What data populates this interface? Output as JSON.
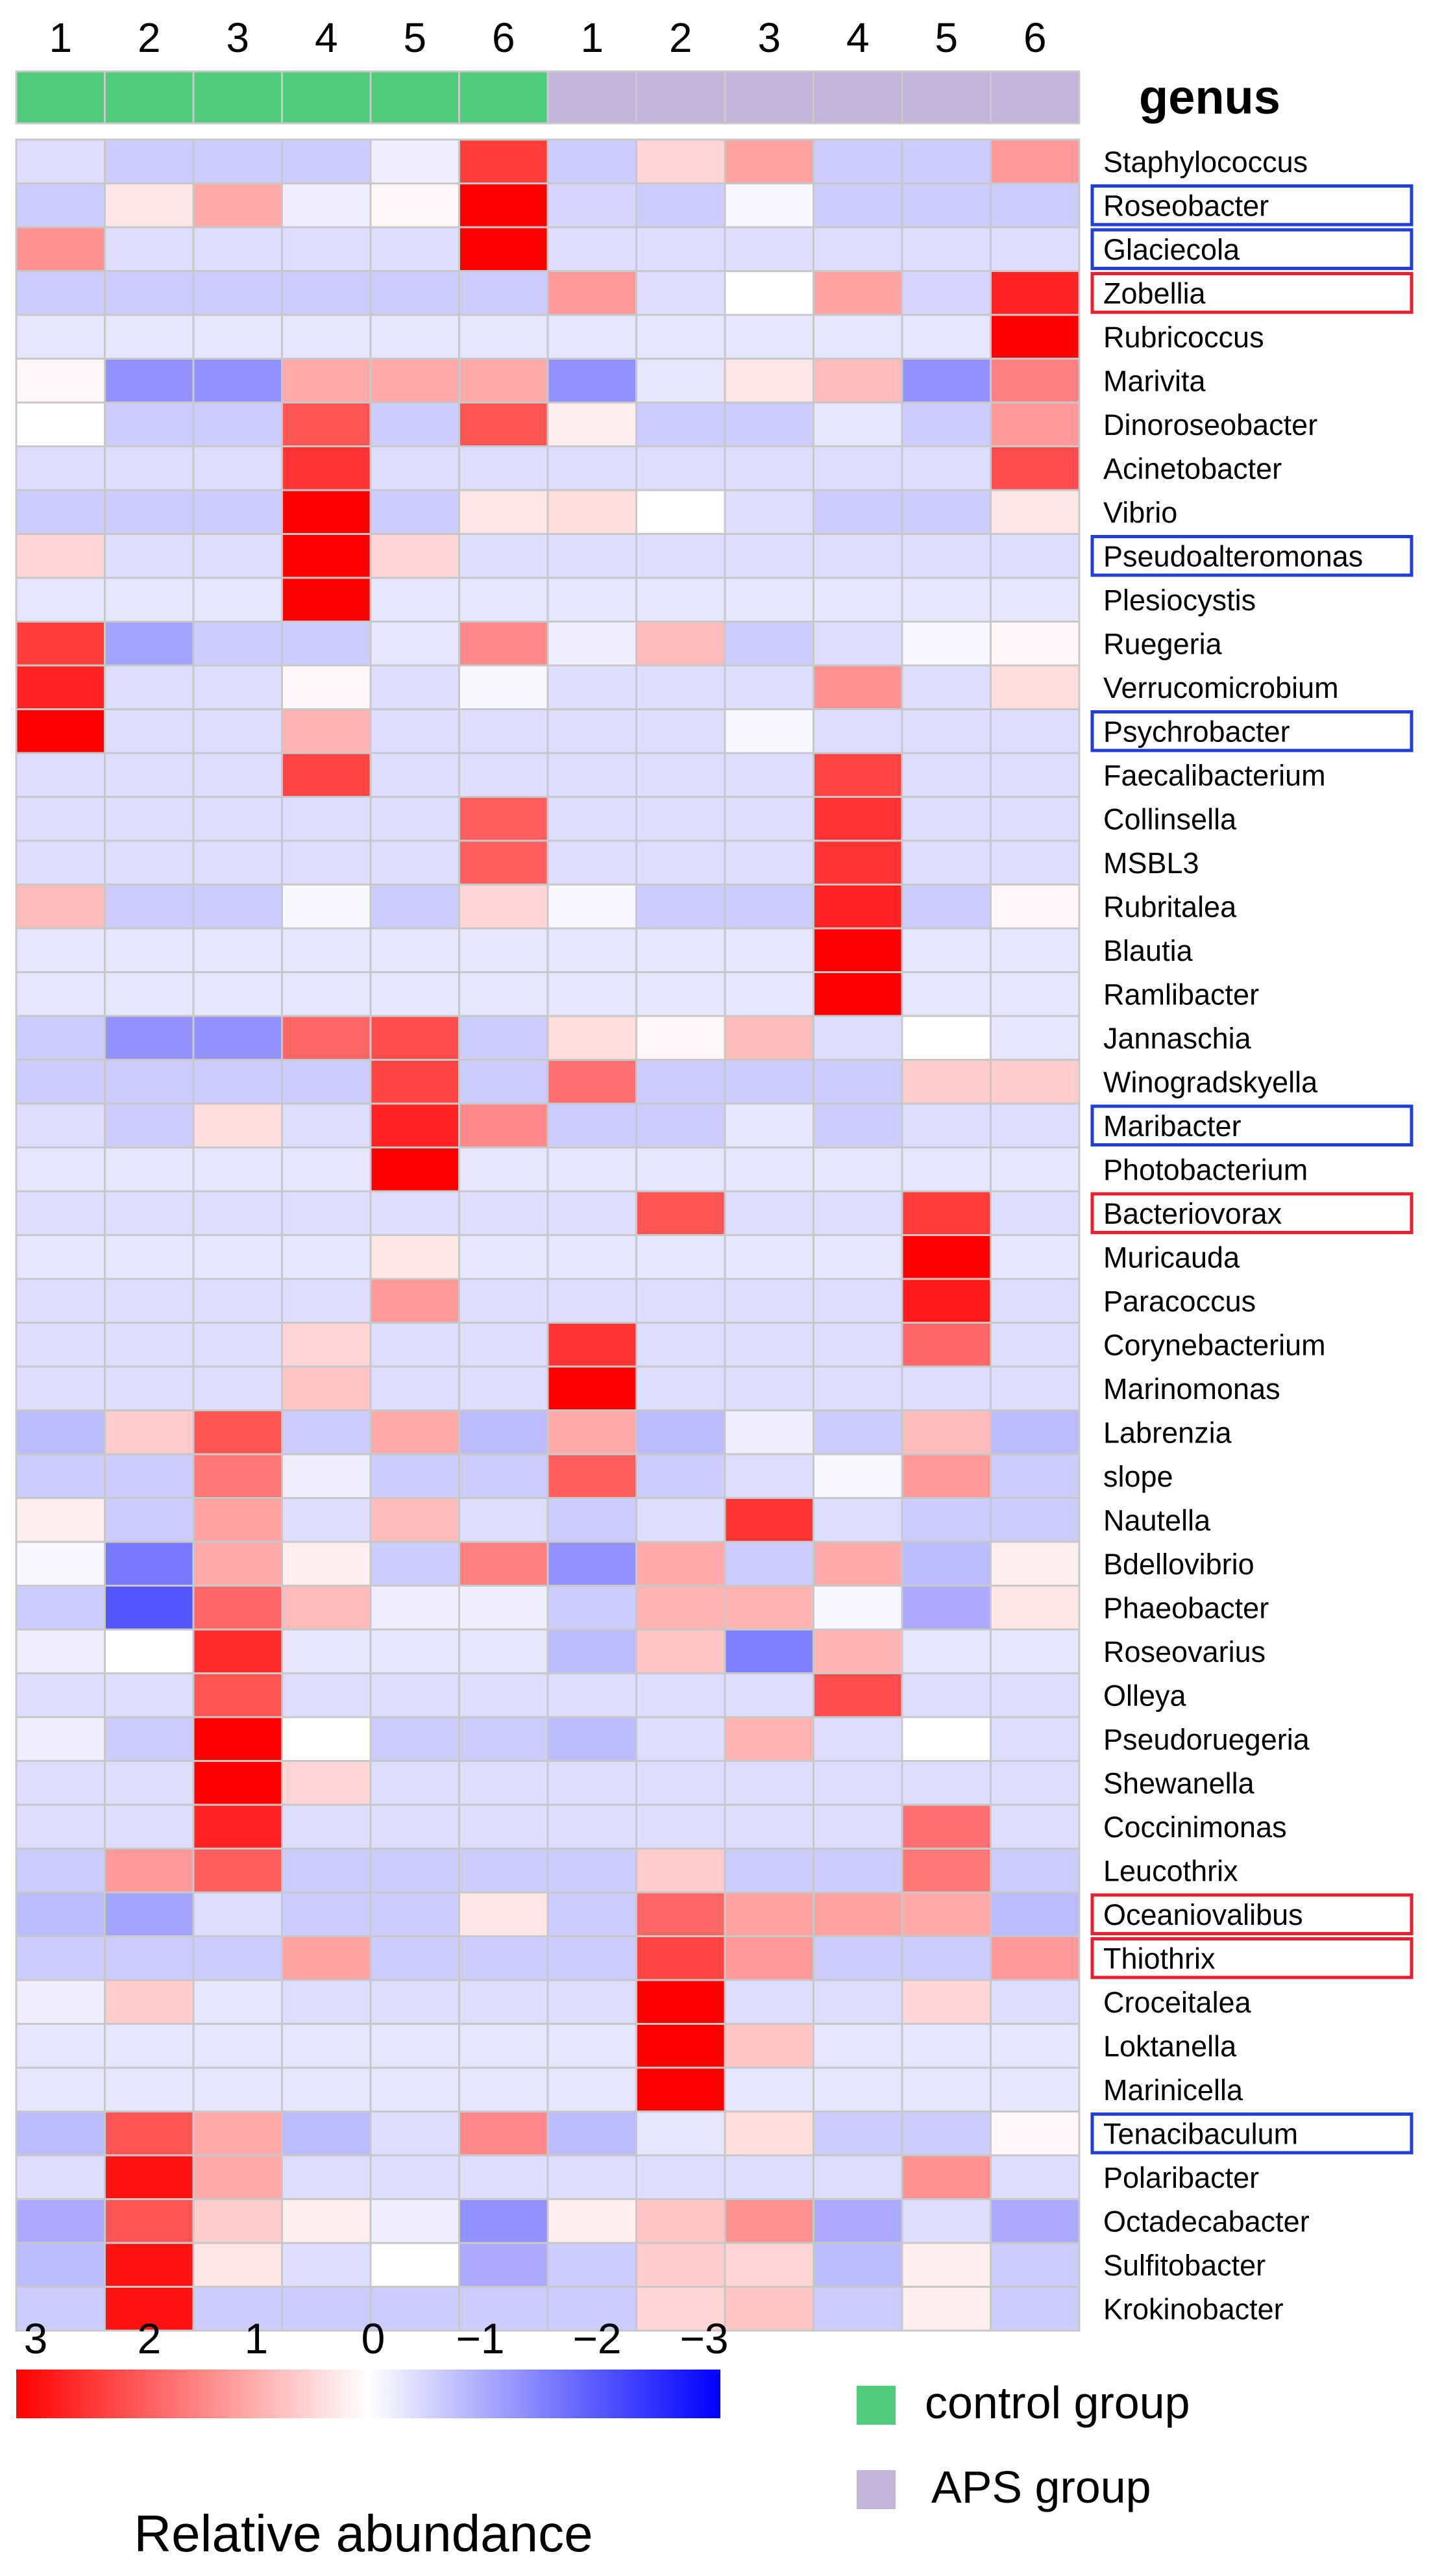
{
  "chart_data": {
    "type": "heatmap",
    "column_labels": [
      "1",
      "2",
      "3",
      "4",
      "5",
      "6",
      "1",
      "2",
      "3",
      "4",
      "5",
      "6"
    ],
    "column_groups": [
      "control",
      "control",
      "control",
      "control",
      "control",
      "control",
      "APS",
      "APS",
      "APS",
      "APS",
      "APS",
      "APS"
    ],
    "annotation_title": "genus",
    "rows": [
      {
        "name": "Staphylococcus",
        "values": [
          -0.4,
          -0.6,
          -0.6,
          -0.6,
          -0.2,
          2.3,
          -0.6,
          0.5,
          1.1,
          -0.6,
          -0.6,
          1.2
        ],
        "box": ""
      },
      {
        "name": "Roseobacter",
        "values": [
          -0.6,
          0.3,
          1.0,
          -0.2,
          0.1,
          3.0,
          -0.5,
          -0.6,
          -0.1,
          -0.6,
          -0.6,
          -0.6
        ],
        "box": "blue"
      },
      {
        "name": "Glaciecola",
        "values": [
          1.3,
          -0.4,
          -0.4,
          -0.4,
          -0.4,
          3.0,
          -0.4,
          -0.4,
          -0.4,
          -0.4,
          -0.4,
          -0.4
        ],
        "box": "blue"
      },
      {
        "name": "Zobellia",
        "values": [
          -0.6,
          -0.6,
          -0.6,
          -0.6,
          -0.6,
          -0.6,
          1.2,
          -0.4,
          0.0,
          1.1,
          -0.5,
          2.6
        ],
        "box": "red"
      },
      {
        "name": "Rubricoccus",
        "values": [
          -0.3,
          -0.3,
          -0.3,
          -0.3,
          -0.3,
          -0.3,
          -0.3,
          -0.3,
          -0.3,
          -0.3,
          -0.3,
          3.0
        ],
        "box": ""
      },
      {
        "name": "Marivita",
        "values": [
          0.1,
          -1.3,
          -1.3,
          1.0,
          1.0,
          1.0,
          -1.3,
          -0.3,
          0.3,
          0.8,
          -1.3,
          1.5
        ],
        "box": ""
      },
      {
        "name": "Dinoroseobacter",
        "values": [
          0.0,
          -0.6,
          -0.6,
          2.0,
          -0.6,
          2.0,
          0.2,
          -0.6,
          -0.6,
          -0.3,
          -0.6,
          1.2
        ],
        "box": ""
      },
      {
        "name": "Acinetobacter",
        "values": [
          -0.4,
          -0.4,
          -0.4,
          2.4,
          -0.4,
          -0.4,
          -0.4,
          -0.4,
          -0.4,
          -0.4,
          -0.4,
          2.1
        ],
        "box": ""
      },
      {
        "name": "Vibrio",
        "values": [
          -0.6,
          -0.6,
          -0.6,
          3.0,
          -0.6,
          0.3,
          0.4,
          0.0,
          -0.4,
          -0.6,
          -0.6,
          0.3
        ],
        "box": ""
      },
      {
        "name": "Pseudoalteromonas",
        "values": [
          0.5,
          -0.4,
          -0.4,
          3.0,
          0.5,
          -0.4,
          -0.4,
          -0.4,
          -0.4,
          -0.4,
          -0.4,
          -0.4
        ],
        "box": "blue"
      },
      {
        "name": "Plesiocystis",
        "values": [
          -0.3,
          -0.3,
          -0.3,
          3.0,
          -0.3,
          -0.3,
          -0.3,
          -0.3,
          -0.3,
          -0.3,
          -0.3,
          -0.3
        ],
        "box": ""
      },
      {
        "name": "Ruegeria",
        "values": [
          2.3,
          -1.1,
          -0.6,
          -0.6,
          -0.3,
          1.4,
          -0.2,
          0.8,
          -0.6,
          -0.4,
          -0.1,
          0.1
        ],
        "box": ""
      },
      {
        "name": "Verrucomicrobium",
        "values": [
          2.6,
          -0.4,
          -0.4,
          0.1,
          -0.4,
          -0.1,
          -0.4,
          -0.4,
          -0.4,
          1.3,
          -0.4,
          0.4
        ],
        "box": ""
      },
      {
        "name": "Psychrobacter",
        "values": [
          3.0,
          -0.4,
          -0.4,
          0.9,
          -0.4,
          -0.4,
          -0.4,
          -0.4,
          -0.1,
          -0.4,
          -0.4,
          -0.4
        ],
        "box": "blue"
      },
      {
        "name": "Faecalibacterium",
        "values": [
          -0.4,
          -0.4,
          -0.4,
          2.2,
          -0.4,
          -0.4,
          -0.4,
          -0.4,
          -0.4,
          2.2,
          -0.4,
          -0.4
        ],
        "box": ""
      },
      {
        "name": "Collinsella",
        "values": [
          -0.4,
          -0.4,
          -0.4,
          -0.4,
          -0.4,
          1.9,
          -0.4,
          -0.4,
          -0.4,
          2.4,
          -0.4,
          -0.4
        ],
        "box": ""
      },
      {
        "name": "MSBL3",
        "values": [
          -0.4,
          -0.4,
          -0.4,
          -0.4,
          -0.4,
          1.9,
          -0.4,
          -0.4,
          -0.4,
          2.4,
          -0.4,
          -0.4
        ],
        "box": ""
      },
      {
        "name": "Rubritalea",
        "values": [
          0.8,
          -0.6,
          -0.6,
          -0.1,
          -0.6,
          0.5,
          -0.1,
          -0.6,
          -0.6,
          2.6,
          -0.6,
          0.1
        ],
        "box": ""
      },
      {
        "name": "Blautia",
        "values": [
          -0.3,
          -0.3,
          -0.3,
          -0.3,
          -0.3,
          -0.3,
          -0.3,
          -0.3,
          -0.3,
          3.0,
          -0.3,
          -0.3
        ],
        "box": ""
      },
      {
        "name": "Ramlibacter",
        "values": [
          -0.3,
          -0.3,
          -0.3,
          -0.3,
          -0.3,
          -0.3,
          -0.3,
          -0.3,
          -0.3,
          3.0,
          -0.3,
          -0.3
        ],
        "box": ""
      },
      {
        "name": "Jannaschia",
        "values": [
          -0.6,
          -1.3,
          -1.3,
          1.8,
          2.1,
          -0.6,
          0.4,
          0.1,
          0.8,
          -0.4,
          0.0,
          -0.3
        ],
        "box": ""
      },
      {
        "name": "Winogradskyella",
        "values": [
          -0.6,
          -0.6,
          -0.6,
          -0.6,
          2.2,
          -0.6,
          1.7,
          -0.6,
          -0.6,
          -0.6,
          0.6,
          0.6
        ],
        "box": ""
      },
      {
        "name": "Maribacter",
        "values": [
          -0.4,
          -0.6,
          0.4,
          -0.4,
          2.6,
          1.4,
          -0.6,
          -0.6,
          -0.3,
          -0.6,
          -0.4,
          -0.4
        ],
        "box": "blue"
      },
      {
        "name": "Photobacterium",
        "values": [
          -0.3,
          -0.3,
          -0.3,
          -0.3,
          3.0,
          -0.3,
          -0.3,
          -0.3,
          -0.3,
          -0.3,
          -0.3,
          -0.3
        ],
        "box": ""
      },
      {
        "name": "Bacteriovorax",
        "values": [
          -0.4,
          -0.4,
          -0.4,
          -0.4,
          -0.4,
          -0.4,
          -0.4,
          2.0,
          -0.4,
          -0.4,
          2.3,
          -0.4
        ],
        "box": "red"
      },
      {
        "name": "Muricauda",
        "values": [
          -0.3,
          -0.3,
          -0.3,
          -0.3,
          0.3,
          -0.3,
          -0.3,
          -0.3,
          -0.3,
          -0.3,
          3.0,
          -0.3
        ],
        "box": ""
      },
      {
        "name": "Paracoccus",
        "values": [
          -0.4,
          -0.4,
          -0.4,
          -0.4,
          1.2,
          -0.4,
          -0.4,
          -0.4,
          -0.4,
          -0.4,
          2.7,
          -0.4
        ],
        "box": ""
      },
      {
        "name": "Corynebacterium",
        "values": [
          -0.4,
          -0.4,
          -0.4,
          0.5,
          -0.4,
          -0.4,
          2.4,
          -0.4,
          -0.4,
          -0.4,
          1.8,
          -0.4
        ],
        "box": ""
      },
      {
        "name": "Marinomonas",
        "values": [
          -0.4,
          -0.4,
          -0.4,
          0.7,
          -0.4,
          -0.4,
          3.0,
          -0.4,
          -0.4,
          -0.4,
          -0.4,
          -0.4
        ],
        "box": ""
      },
      {
        "name": "Labrenzia",
        "values": [
          -0.8,
          0.6,
          2.0,
          -0.6,
          1.0,
          -0.8,
          1.0,
          -0.8,
          -0.2,
          -0.6,
          0.8,
          -0.8
        ],
        "box": ""
      },
      {
        "name": "slope",
        "values": [
          -0.6,
          -0.6,
          1.6,
          -0.2,
          -0.6,
          -0.6,
          1.9,
          -0.6,
          -0.4,
          -0.1,
          1.2,
          -0.6
        ],
        "box": ""
      },
      {
        "name": "Nautella",
        "values": [
          0.2,
          -0.6,
          1.1,
          -0.4,
          0.8,
          -0.4,
          -0.6,
          -0.4,
          2.4,
          -0.4,
          -0.6,
          -0.6
        ],
        "box": ""
      },
      {
        "name": "Bdellovibrio",
        "values": [
          -0.1,
          -1.6,
          1.0,
          0.2,
          -0.6,
          1.5,
          -1.3,
          1.0,
          -0.6,
          1.0,
          -0.8,
          0.2
        ],
        "box": ""
      },
      {
        "name": "Phaeobacter",
        "values": [
          -0.6,
          -2.0,
          1.8,
          0.8,
          -0.2,
          -0.2,
          -0.6,
          0.9,
          0.9,
          -0.1,
          -1.0,
          0.3
        ],
        "box": ""
      },
      {
        "name": "Roseovarius",
        "values": [
          -0.2,
          0.0,
          2.5,
          -0.3,
          -0.3,
          -0.3,
          -0.8,
          0.7,
          -1.5,
          0.9,
          -0.3,
          -0.3
        ],
        "box": ""
      },
      {
        "name": "Olleya",
        "values": [
          -0.4,
          -0.4,
          2.0,
          -0.4,
          -0.4,
          -0.4,
          -0.4,
          -0.4,
          -0.4,
          2.1,
          -0.4,
          -0.4
        ],
        "box": ""
      },
      {
        "name": "Pseudoruegeria",
        "values": [
          -0.2,
          -0.6,
          3.0,
          0.0,
          -0.6,
          -0.6,
          -0.8,
          -0.4,
          0.9,
          -0.4,
          0.0,
          -0.4
        ],
        "box": ""
      },
      {
        "name": "Shewanella",
        "values": [
          -0.4,
          -0.4,
          3.0,
          0.5,
          -0.4,
          -0.4,
          -0.4,
          -0.4,
          -0.4,
          -0.4,
          -0.4,
          -0.4
        ],
        "box": ""
      },
      {
        "name": "Coccinimonas",
        "values": [
          -0.4,
          -0.4,
          2.6,
          -0.4,
          -0.4,
          -0.4,
          -0.4,
          -0.4,
          -0.4,
          -0.4,
          1.7,
          -0.4
        ],
        "box": ""
      },
      {
        "name": "Leucothrix",
        "values": [
          -0.6,
          1.2,
          1.9,
          -0.6,
          -0.6,
          -0.6,
          -0.6,
          0.6,
          -0.6,
          -0.6,
          1.6,
          -0.6
        ],
        "box": ""
      },
      {
        "name": "Oceaniovalibus",
        "values": [
          -0.8,
          -1.1,
          -0.4,
          -0.6,
          -0.6,
          0.3,
          -0.6,
          1.8,
          1.1,
          1.1,
          1.0,
          -0.8
        ],
        "box": "red"
      },
      {
        "name": "Thiothrix",
        "values": [
          -0.6,
          -0.6,
          -0.6,
          1.1,
          -0.6,
          -0.6,
          -0.6,
          2.2,
          1.2,
          -0.6,
          -0.6,
          1.2
        ],
        "box": "red"
      },
      {
        "name": "Croceitalea",
        "values": [
          -0.2,
          0.6,
          -0.3,
          -0.4,
          -0.4,
          -0.4,
          -0.4,
          3.0,
          -0.4,
          -0.4,
          0.5,
          -0.4
        ],
        "box": ""
      },
      {
        "name": "Loktanella",
        "values": [
          -0.3,
          -0.3,
          -0.3,
          -0.3,
          -0.3,
          -0.3,
          -0.3,
          3.0,
          0.7,
          -0.3,
          -0.3,
          -0.3
        ],
        "box": ""
      },
      {
        "name": "Marinicella",
        "values": [
          -0.3,
          -0.3,
          -0.3,
          -0.3,
          -0.3,
          -0.3,
          -0.3,
          3.0,
          -0.3,
          -0.3,
          -0.3,
          -0.3
        ],
        "box": ""
      },
      {
        "name": "Tenacibaculum",
        "values": [
          -0.8,
          2.0,
          1.0,
          -0.8,
          -0.4,
          1.4,
          -0.8,
          -0.3,
          0.4,
          -0.6,
          -0.6,
          0.1
        ],
        "box": "blue"
      },
      {
        "name": "Polaribacter",
        "values": [
          -0.4,
          2.8,
          1.0,
          -0.4,
          -0.4,
          -0.4,
          -0.4,
          -0.4,
          -0.4,
          -0.4,
          1.3,
          -0.4
        ],
        "box": ""
      },
      {
        "name": "Octadecabacter",
        "values": [
          -1.0,
          2.0,
          0.6,
          0.2,
          -0.2,
          -1.3,
          0.2,
          0.7,
          1.3,
          -1.0,
          -0.4,
          -1.0
        ],
        "box": ""
      },
      {
        "name": "Sulfitobacter",
        "values": [
          -0.8,
          2.8,
          0.3,
          -0.4,
          0.0,
          -1.0,
          -0.6,
          0.6,
          0.5,
          -0.8,
          0.2,
          -0.6
        ],
        "box": ""
      },
      {
        "name": "Krokinobacter",
        "values": [
          -0.6,
          2.8,
          -0.6,
          -0.6,
          -0.6,
          -0.6,
          -0.6,
          0.5,
          0.7,
          -0.6,
          0.2,
          -0.6
        ],
        "box": ""
      }
    ],
    "color_scale": {
      "ticks": [
        "3",
        "2",
        "1",
        "0",
        "−1",
        "−2",
        "−3"
      ],
      "range": [
        3,
        -3
      ],
      "label": "Relative abundance",
      "high_color": "#ff0000",
      "mid_color": "#ffffff",
      "low_color": "#0000ff"
    },
    "legend": [
      {
        "label": "control group",
        "color": "#4ecb7b"
      },
      {
        "label": "APS group",
        "color": "#c5b4d9"
      }
    ],
    "box_colors": {
      "blue": "#1f3fd6",
      "red": "#e8202e"
    },
    "grid_color": "#c8c8c8"
  }
}
